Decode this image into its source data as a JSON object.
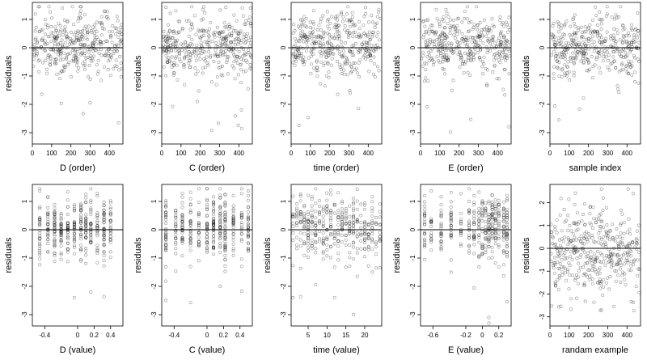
{
  "chart_data": [
    {
      "type": "scatter",
      "xlabel": "D (order)",
      "ylabel": "residuals",
      "xlim": [
        0,
        470
      ],
      "ylim": [
        -3.4,
        1.6
      ],
      "xticks": [
        0,
        100,
        200,
        300,
        400
      ],
      "xticklabels": [
        "0",
        "100",
        "200",
        "300",
        "400"
      ],
      "yticks": [
        -3,
        -2,
        -1,
        0,
        1
      ],
      "yticklabels": [
        "-3",
        "-2",
        "-1",
        "0",
        "1"
      ],
      "hline": 0,
      "gen": {
        "kind": "order",
        "seed": 11,
        "n": 380
      }
    },
    {
      "type": "scatter",
      "xlabel": "C (order)",
      "ylabel": "residuals",
      "xlim": [
        0,
        470
      ],
      "ylim": [
        -3.4,
        1.6
      ],
      "xticks": [
        0,
        100,
        200,
        300,
        400
      ],
      "xticklabels": [
        "0",
        "100",
        "200",
        "300",
        "400"
      ],
      "yticks": [
        -3,
        -2,
        -1,
        0,
        1
      ],
      "yticklabels": [
        "-3",
        "-2",
        "-1",
        "0",
        "1"
      ],
      "hline": 0,
      "gen": {
        "kind": "order",
        "seed": 23,
        "n": 380
      }
    },
    {
      "type": "scatter",
      "xlabel": "time (order)",
      "ylabel": "residuals",
      "xlim": [
        0,
        470
      ],
      "ylim": [
        -3.4,
        1.6
      ],
      "xticks": [
        0,
        100,
        200,
        300,
        400
      ],
      "xticklabels": [
        "0",
        "100",
        "200",
        "300",
        "400"
      ],
      "yticks": [
        -3,
        -2,
        -1,
        0,
        1
      ],
      "yticklabels": [
        "-3",
        "-2",
        "-1",
        "0",
        "1"
      ],
      "hline": 0,
      "gen": {
        "kind": "order",
        "seed": 37,
        "n": 380
      }
    },
    {
      "type": "scatter",
      "xlabel": "E (order)",
      "ylabel": "residuals",
      "xlim": [
        0,
        470
      ],
      "ylim": [
        -3.4,
        1.6
      ],
      "xticks": [
        0,
        100,
        200,
        300,
        400
      ],
      "xticklabels": [
        "0",
        "100",
        "200",
        "300",
        "400"
      ],
      "yticks": [
        -3,
        -2,
        -1,
        0,
        1
      ],
      "yticklabels": [
        "-3",
        "-2",
        "-1",
        "0",
        "1"
      ],
      "hline": 0,
      "gen": {
        "kind": "order",
        "seed": 41,
        "n": 380
      }
    },
    {
      "type": "scatter",
      "xlabel": "sample index",
      "ylabel": "residuals",
      "xlim": [
        0,
        470
      ],
      "ylim": [
        -3.4,
        1.6
      ],
      "xticks": [
        0,
        100,
        200,
        300,
        400
      ],
      "xticklabels": [
        "0",
        "100",
        "200",
        "300",
        "400"
      ],
      "yticks": [
        -3,
        -2,
        -1,
        0,
        1
      ],
      "yticklabels": [
        "-3",
        "-2",
        "-1",
        "0",
        "1"
      ],
      "hline": 0,
      "gen": {
        "kind": "order",
        "seed": 53,
        "n": 380
      }
    },
    {
      "type": "scatter",
      "xlabel": "D (value)",
      "ylabel": "residuals",
      "xlim": [
        -0.55,
        0.55
      ],
      "ylim": [
        -3.4,
        1.6
      ],
      "xticks": [
        -0.4,
        0,
        0.2,
        0.4
      ],
      "xticklabels": [
        "-0.4",
        "0",
        "0.2",
        "0.4"
      ],
      "yticks": [
        -3,
        -2,
        -1,
        0,
        1
      ],
      "yticklabels": [
        "-3",
        "-2",
        "-1",
        "0",
        "1"
      ],
      "hline": 0,
      "gen": {
        "kind": "value",
        "seed": 61,
        "n": 380,
        "columns": [
          -0.46,
          -0.36,
          -0.28,
          -0.2,
          -0.12,
          -0.04,
          0.04,
          0.1,
          0.16,
          0.24,
          0.32,
          0.4
        ]
      }
    },
    {
      "type": "scatter",
      "xlabel": "C (value)",
      "ylabel": "residuals",
      "xlim": [
        -0.55,
        0.55
      ],
      "ylim": [
        -3.4,
        1.6
      ],
      "xticks": [
        -0.4,
        0,
        0.2,
        0.4
      ],
      "xticklabels": [
        "-0.4",
        "0",
        "0.2",
        "0.4"
      ],
      "yticks": [
        -3,
        -2,
        -1,
        0,
        1
      ],
      "yticklabels": [
        "-3",
        "-2",
        "-1",
        "0",
        "1"
      ],
      "hline": 0,
      "gen": {
        "kind": "value",
        "seed": 73,
        "n": 380,
        "columns": [
          -0.5,
          -0.38,
          -0.3,
          -0.2,
          -0.1,
          0.0,
          0.08,
          0.16,
          0.22,
          0.32,
          0.42,
          0.5
        ]
      }
    },
    {
      "type": "scatter",
      "xlabel": "time (value)",
      "ylabel": "residuals",
      "xlim": [
        0.5,
        24.5
      ],
      "ylim": [
        -3.4,
        1.6
      ],
      "xticks": [
        5,
        10,
        15,
        20
      ],
      "xticklabels": [
        "5",
        "10",
        "15",
        "20"
      ],
      "yticks": [
        -3,
        -2,
        -1,
        0,
        1
      ],
      "yticklabels": [
        "-3",
        "-2",
        "-1",
        "0",
        "1"
      ],
      "hline": 0,
      "gen": {
        "kind": "value",
        "seed": 83,
        "n": 380,
        "columns": [
          1,
          2,
          3,
          4,
          5,
          6,
          7,
          8,
          9,
          10,
          11,
          12,
          13,
          14,
          15,
          16,
          17,
          18,
          19,
          20,
          21,
          22,
          23,
          24
        ]
      }
    },
    {
      "type": "scatter",
      "xlabel": "E (value)",
      "ylabel": "residuals",
      "xlim": [
        -0.75,
        0.35
      ],
      "ylim": [
        -3.4,
        1.6
      ],
      "xticks": [
        -0.6,
        -0.2,
        0,
        0.2
      ],
      "xticklabels": [
        "-0.6",
        "-0.2",
        "0",
        "0.2"
      ],
      "yticks": [
        -3,
        -2,
        -1,
        0,
        1
      ],
      "yticklabels": [
        "-3",
        "-2",
        "-1",
        "0",
        "1"
      ],
      "hline": 0,
      "gen": {
        "kind": "value",
        "seed": 97,
        "n": 380,
        "columns": [
          -0.7,
          -0.62,
          -0.5,
          -0.38,
          -0.26,
          -0.16,
          -0.1,
          -0.04,
          0.0,
          0.04,
          0.08,
          0.12,
          0.16,
          0.2,
          0.26,
          0.3
        ]
      }
    },
    {
      "type": "scatter",
      "xlabel": "randam example",
      "ylabel": "residuals",
      "xlim": [
        0,
        470
      ],
      "ylim": [
        -3.4,
        2.8
      ],
      "xticks": [
        0,
        100,
        200,
        300,
        400
      ],
      "xticklabels": [
        "0",
        "100",
        "200",
        "300",
        "400"
      ],
      "yticks": [
        -3,
        -2,
        -1,
        0,
        1,
        2
      ],
      "yticklabels": [
        "-3",
        "-2",
        "-1",
        "0",
        "1",
        "2"
      ],
      "hline": 0,
      "gen": {
        "kind": "random",
        "seed": 101,
        "n": 400
      }
    }
  ]
}
